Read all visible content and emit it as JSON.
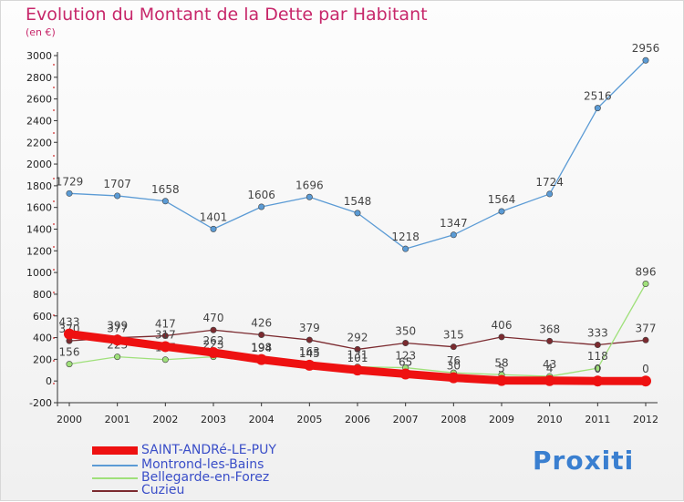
{
  "header": {
    "title": "Evolution du Montant de la Dette par Habitant",
    "subtitle": "(en €)"
  },
  "colors": {
    "title": "#c7276a",
    "legend_text": "#3a4ec8",
    "axis": "#333333",
    "grid_dots": "#cc2222"
  },
  "chart_data": {
    "type": "line",
    "title": "Evolution du Montant de la Dette par Habitant",
    "ylabel": "(en €)",
    "xlabel": "",
    "x": [
      "2000",
      "2001",
      "2002",
      "2003",
      "2004",
      "2005",
      "2006",
      "2007",
      "2008",
      "2009",
      "2010",
      "2011",
      "2012"
    ],
    "ylim": [
      -200,
      3000
    ],
    "yticks": [
      -200,
      0,
      200,
      400,
      600,
      800,
      1000,
      1200,
      1400,
      1600,
      1800,
      2000,
      2200,
      2400,
      2600,
      2800,
      3000
    ],
    "legend_position": "bottom-left",
    "series": [
      {
        "name": "Montrond-les-Bains",
        "color": "#5b9bd5",
        "values": [
          1729,
          1707,
          1658,
          1401,
          1606,
          1696,
          1548,
          1218,
          1347,
          1564,
          1724,
          2516,
          2956
        ],
        "labels": [
          "1729",
          "1707",
          "1658",
          "1401",
          "1606",
          "1696",
          "1548",
          "1218",
          "1347",
          "1564",
          "1724",
          "2516",
          "2956"
        ]
      },
      {
        "name": "Cuzieu",
        "color": "#7b2a2f",
        "values": [
          370,
          399,
          417,
          470,
          426,
          379,
          292,
          350,
          315,
          406,
          368,
          333,
          377
        ],
        "labels": [
          "370",
          "399",
          "417",
          "470",
          "426",
          "379",
          "292",
          "350",
          "315",
          "406",
          "368",
          "333",
          "377"
        ]
      },
      {
        "name": "Bellegarde-en-Forez",
        "color": "#9fe07a",
        "values": [
          156,
          223,
          197,
          223,
          194,
          163,
          131,
          123,
          76,
          58,
          43,
          118,
          896
        ],
        "labels": [
          "156",
          "223",
          "197",
          "223",
          "194",
          "163",
          "131",
          "123",
          "76",
          "58",
          "43",
          "118",
          "896"
        ]
      },
      {
        "name": "SAINT-ANDRé-LE-PUY",
        "color": "#ee1111",
        "values": [
          433,
          377,
          317,
          262,
          198,
          145,
          101,
          65,
          30,
          5,
          4,
          0,
          0
        ],
        "labels": [
          "433",
          "377",
          "317",
          "262",
          "198",
          "145",
          "101",
          "65",
          "30",
          "5",
          "4",
          "0",
          "0"
        ]
      }
    ]
  },
  "legend": [
    {
      "label": "SAINT-ANDRé-LE-PUY",
      "color": "#ee1111",
      "thickness": "thick"
    },
    {
      "label": "Montrond-les-Bains",
      "color": "#5b9bd5",
      "thickness": "thin"
    },
    {
      "label": "Bellegarde-en-Forez",
      "color": "#9fe07a",
      "thickness": "thin"
    },
    {
      "label": "Cuzieu",
      "color": "#7b2a2f",
      "thickness": "thin"
    }
  ],
  "brand": {
    "text": "Proxiti"
  }
}
